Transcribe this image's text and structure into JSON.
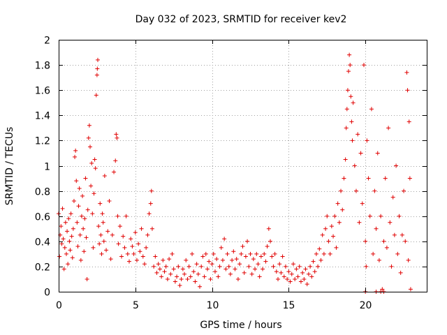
{
  "chart_data": {
    "type": "scatter",
    "title": "Day 032 of 2023, SRMTID for receiver kev2",
    "xlabel": "GPS time / hours",
    "ylabel": "SRMTID / TECUs",
    "xlim": [
      0,
      24
    ],
    "ylim": [
      0,
      2
    ],
    "x_ticks": [
      0,
      5,
      10,
      15,
      20
    ],
    "x_tick_labels": [
      "0",
      "5",
      "10",
      "15",
      "20"
    ],
    "y_ticks": [
      0,
      0.2,
      0.4,
      0.6,
      0.8,
      1,
      1.2,
      1.4,
      1.6,
      1.8,
      2
    ],
    "y_tick_labels": [
      "0",
      "0.2",
      "0.4",
      "0.6",
      "0.8",
      "1",
      "1.2",
      "1.4",
      "1.6",
      "1.8",
      "2"
    ],
    "grid": true,
    "marker": "+",
    "color": "#e00000",
    "series": [
      {
        "name": "kev2",
        "points": [
          [
            0.0,
            0.62
          ],
          [
            0.05,
            0.28
          ],
          [
            0.1,
            0.45
          ],
          [
            0.15,
            0.52
          ],
          [
            0.2,
            0.38
          ],
          [
            0.25,
            0.66
          ],
          [
            0.3,
            0.42
          ],
          [
            0.35,
            0.18
          ],
          [
            0.4,
            0.35
          ],
          [
            0.45,
            0.55
          ],
          [
            0.5,
            0.3
          ],
          [
            0.55,
            0.48
          ],
          [
            0.6,
            0.22
          ],
          [
            0.65,
            0.58
          ],
          [
            0.7,
            0.4
          ],
          [
            0.75,
            0.33
          ],
          [
            0.8,
            0.62
          ],
          [
            0.85,
            0.44
          ],
          [
            0.9,
            0.27
          ],
          [
            0.95,
            0.5
          ],
          [
            1.0,
            0.72
          ],
          [
            1.05,
            1.07
          ],
          [
            1.1,
            1.12
          ],
          [
            1.15,
            0.88
          ],
          [
            1.2,
            0.55
          ],
          [
            1.25,
            0.36
          ],
          [
            1.3,
            0.68
          ],
          [
            1.35,
            0.82
          ],
          [
            1.4,
            0.45
          ],
          [
            1.45,
            0.25
          ],
          [
            1.5,
            0.6
          ],
          [
            1.55,
            0.76
          ],
          [
            1.6,
            0.5
          ],
          [
            1.65,
            0.32
          ],
          [
            1.7,
            0.58
          ],
          [
            1.75,
            0.9
          ],
          [
            1.8,
            0.43
          ],
          [
            1.85,
            0.1
          ],
          [
            1.9,
            0.65
          ],
          [
            1.95,
            1.22
          ],
          [
            2.0,
            1.32
          ],
          [
            2.05,
            1.15
          ],
          [
            2.1,
            0.84
          ],
          [
            2.15,
            1.02
          ],
          [
            2.2,
            0.62
          ],
          [
            2.25,
            0.35
          ],
          [
            2.3,
            0.78
          ],
          [
            2.35,
            1.05
          ],
          [
            2.4,
            0.98
          ],
          [
            2.45,
            1.56
          ],
          [
            2.5,
            1.72
          ],
          [
            2.52,
            1.77
          ],
          [
            2.55,
            1.84
          ],
          [
            2.6,
            0.52
          ],
          [
            2.65,
            0.38
          ],
          [
            2.7,
            0.7
          ],
          [
            2.75,
            0.45
          ],
          [
            2.8,
            0.3
          ],
          [
            2.85,
            0.62
          ],
          [
            2.9,
            0.55
          ],
          [
            2.95,
            0.4
          ],
          [
            3.0,
            0.92
          ],
          [
            3.1,
            0.33
          ],
          [
            3.2,
            0.48
          ],
          [
            3.3,
            0.72
          ],
          [
            3.4,
            0.26
          ],
          [
            3.5,
            0.45
          ],
          [
            3.6,
            0.95
          ],
          [
            3.7,
            1.04
          ],
          [
            3.75,
            1.25
          ],
          [
            3.8,
            1.22
          ],
          [
            3.85,
            0.6
          ],
          [
            3.9,
            0.38
          ],
          [
            4.0,
            0.52
          ],
          [
            4.1,
            0.28
          ],
          [
            4.2,
            0.44
          ],
          [
            4.3,
            0.35
          ],
          [
            4.4,
            0.6
          ],
          [
            4.5,
            0.3
          ],
          [
            4.6,
            0.24
          ],
          [
            4.7,
            0.42
          ],
          [
            4.8,
            0.36
          ],
          [
            4.9,
            0.3
          ],
          [
            5.0,
            0.47
          ],
          [
            5.1,
            0.25
          ],
          [
            5.2,
            0.38
          ],
          [
            5.3,
            0.32
          ],
          [
            5.4,
            0.5
          ],
          [
            5.5,
            0.28
          ],
          [
            5.6,
            0.22
          ],
          [
            5.7,
            0.35
          ],
          [
            5.8,
            0.45
          ],
          [
            5.9,
            0.62
          ],
          [
            6.0,
            0.7
          ],
          [
            6.05,
            0.8
          ],
          [
            6.1,
            0.5
          ],
          [
            6.2,
            0.2
          ],
          [
            6.3,
            0.28
          ],
          [
            6.4,
            0.15
          ],
          [
            6.5,
            0.22
          ],
          [
            6.6,
            0.18
          ],
          [
            6.7,
            0.12
          ],
          [
            6.8,
            0.25
          ],
          [
            6.9,
            0.16
          ],
          [
            7.0,
            0.2
          ],
          [
            7.1,
            0.1
          ],
          [
            7.2,
            0.26
          ],
          [
            7.3,
            0.14
          ],
          [
            7.4,
            0.3
          ],
          [
            7.5,
            0.18
          ],
          [
            7.6,
            0.08
          ],
          [
            7.7,
            0.12
          ],
          [
            7.8,
            0.2
          ],
          [
            7.9,
            0.05
          ],
          [
            8.0,
            0.1
          ],
          [
            8.1,
            0.18
          ],
          [
            8.2,
            0.14
          ],
          [
            8.3,
            0.25
          ],
          [
            8.4,
            0.1
          ],
          [
            8.5,
            0.2
          ],
          [
            8.6,
            0.12
          ],
          [
            8.7,
            0.3
          ],
          [
            8.8,
            0.16
          ],
          [
            8.9,
            0.08
          ],
          [
            9.0,
            0.22
          ],
          [
            9.1,
            0.14
          ],
          [
            9.2,
            0.04
          ],
          [
            9.3,
            0.2
          ],
          [
            9.4,
            0.28
          ],
          [
            9.5,
            0.12
          ],
          [
            9.6,
            0.3
          ],
          [
            9.7,
            0.18
          ],
          [
            9.8,
            0.24
          ],
          [
            9.9,
            0.1
          ],
          [
            10.0,
            0.22
          ],
          [
            10.1,
            0.3
          ],
          [
            10.2,
            0.16
          ],
          [
            10.3,
            0.26
          ],
          [
            10.4,
            0.12
          ],
          [
            10.5,
            0.2
          ],
          [
            10.6,
            0.35
          ],
          [
            10.7,
            0.25
          ],
          [
            10.8,
            0.42
          ],
          [
            10.9,
            0.18
          ],
          [
            11.0,
            0.3
          ],
          [
            11.1,
            0.2
          ],
          [
            11.2,
            0.14
          ],
          [
            11.3,
            0.25
          ],
          [
            11.4,
            0.32
          ],
          [
            11.5,
            0.18
          ],
          [
            11.6,
            0.26
          ],
          [
            11.7,
            0.1
          ],
          [
            11.8,
            0.22
          ],
          [
            11.9,
            0.3
          ],
          [
            12.0,
            0.36
          ],
          [
            12.1,
            0.15
          ],
          [
            12.2,
            0.28
          ],
          [
            12.3,
            0.4
          ],
          [
            12.4,
            0.2
          ],
          [
            12.5,
            0.3
          ],
          [
            12.6,
            0.14
          ],
          [
            12.7,
            0.26
          ],
          [
            12.8,
            0.18
          ],
          [
            12.9,
            0.3
          ],
          [
            13.0,
            0.22
          ],
          [
            13.1,
            0.12
          ],
          [
            13.2,
            0.28
          ],
          [
            13.3,
            0.18
          ],
          [
            13.4,
            0.3
          ],
          [
            13.5,
            0.24
          ],
          [
            13.6,
            0.36
          ],
          [
            13.7,
            0.5
          ],
          [
            13.8,
            0.4
          ],
          [
            13.9,
            0.28
          ],
          [
            14.0,
            0.2
          ],
          [
            14.1,
            0.3
          ],
          [
            14.2,
            0.16
          ],
          [
            14.3,
            0.1
          ],
          [
            14.4,
            0.22
          ],
          [
            14.5,
            0.15
          ],
          [
            14.6,
            0.28
          ],
          [
            14.7,
            0.12
          ],
          [
            14.8,
            0.2
          ],
          [
            14.9,
            0.1
          ],
          [
            15.0,
            0.16
          ],
          [
            15.1,
            0.08
          ],
          [
            15.2,
            0.14
          ],
          [
            15.3,
            0.22
          ],
          [
            15.4,
            0.1
          ],
          [
            15.5,
            0.18
          ],
          [
            15.6,
            0.12
          ],
          [
            15.7,
            0.2
          ],
          [
            15.8,
            0.08
          ],
          [
            15.9,
            0.15
          ],
          [
            16.0,
            0.1
          ],
          [
            16.1,
            0.18
          ],
          [
            16.2,
            0.06
          ],
          [
            16.3,
            0.14
          ],
          [
            16.4,
            0.2
          ],
          [
            16.5,
            0.12
          ],
          [
            16.6,
            0.24
          ],
          [
            16.7,
            0.16
          ],
          [
            16.8,
            0.3
          ],
          [
            16.9,
            0.2
          ],
          [
            17.0,
            0.34
          ],
          [
            17.1,
            0.25
          ],
          [
            17.2,
            0.45
          ],
          [
            17.3,
            0.3
          ],
          [
            17.4,
            0.5
          ],
          [
            17.5,
            0.6
          ],
          [
            17.6,
            0.4
          ],
          [
            17.7,
            0.3
          ],
          [
            17.8,
            0.52
          ],
          [
            17.9,
            0.44
          ],
          [
            18.0,
            0.6
          ],
          [
            18.1,
            0.35
          ],
          [
            18.2,
            0.7
          ],
          [
            18.3,
            0.55
          ],
          [
            18.4,
            0.8
          ],
          [
            18.5,
            0.65
          ],
          [
            18.6,
            0.9
          ],
          [
            18.7,
            1.05
          ],
          [
            18.75,
            1.3
          ],
          [
            18.8,
            1.45
          ],
          [
            18.85,
            1.6
          ],
          [
            18.9,
            1.75
          ],
          [
            18.95,
            1.88
          ],
          [
            19.0,
            1.8
          ],
          [
            19.05,
            1.55
          ],
          [
            19.1,
            1.35
          ],
          [
            19.15,
            1.2
          ],
          [
            19.2,
            1.5
          ],
          [
            19.3,
            1.0
          ],
          [
            19.4,
            0.8
          ],
          [
            19.5,
            1.25
          ],
          [
            19.6,
            0.55
          ],
          [
            19.7,
            1.1
          ],
          [
            19.8,
            0.7
          ],
          [
            19.9,
            1.8
          ],
          [
            20.0,
            0.4
          ],
          [
            20.05,
            0.2
          ],
          [
            20.1,
            1.2
          ],
          [
            20.2,
            0.9
          ],
          [
            20.3,
            0.6
          ],
          [
            20.4,
            1.45
          ],
          [
            20.5,
            0.3
          ],
          [
            20.6,
            0.8
          ],
          [
            20.7,
            0.5
          ],
          [
            20.8,
            1.1
          ],
          [
            20.9,
            0.25
          ],
          [
            21.0,
            0.6
          ],
          [
            21.1,
            0.02
          ],
          [
            21.2,
            0.4
          ],
          [
            21.3,
            0.9
          ],
          [
            21.4,
            0.35
          ],
          [
            21.5,
            1.3
          ],
          [
            21.6,
            0.55
          ],
          [
            21.7,
            0.2
          ],
          [
            21.8,
            0.75
          ],
          [
            21.9,
            0.45
          ],
          [
            22.0,
            1.0
          ],
          [
            22.1,
            0.3
          ],
          [
            22.2,
            0.6
          ],
          [
            22.3,
            0.15
          ],
          [
            22.4,
            0.45
          ],
          [
            22.5,
            0.8
          ],
          [
            22.6,
            0.4
          ],
          [
            22.7,
            1.74
          ],
          [
            22.75,
            1.6
          ],
          [
            22.8,
            0.25
          ],
          [
            22.85,
            1.35
          ],
          [
            22.9,
            0.9
          ],
          [
            22.95,
            0.02
          ],
          [
            20.0,
            0.0
          ],
          [
            20.7,
            0.0
          ],
          [
            21.0,
            0.0
          ],
          [
            21.2,
            0.0
          ]
        ]
      }
    ]
  }
}
